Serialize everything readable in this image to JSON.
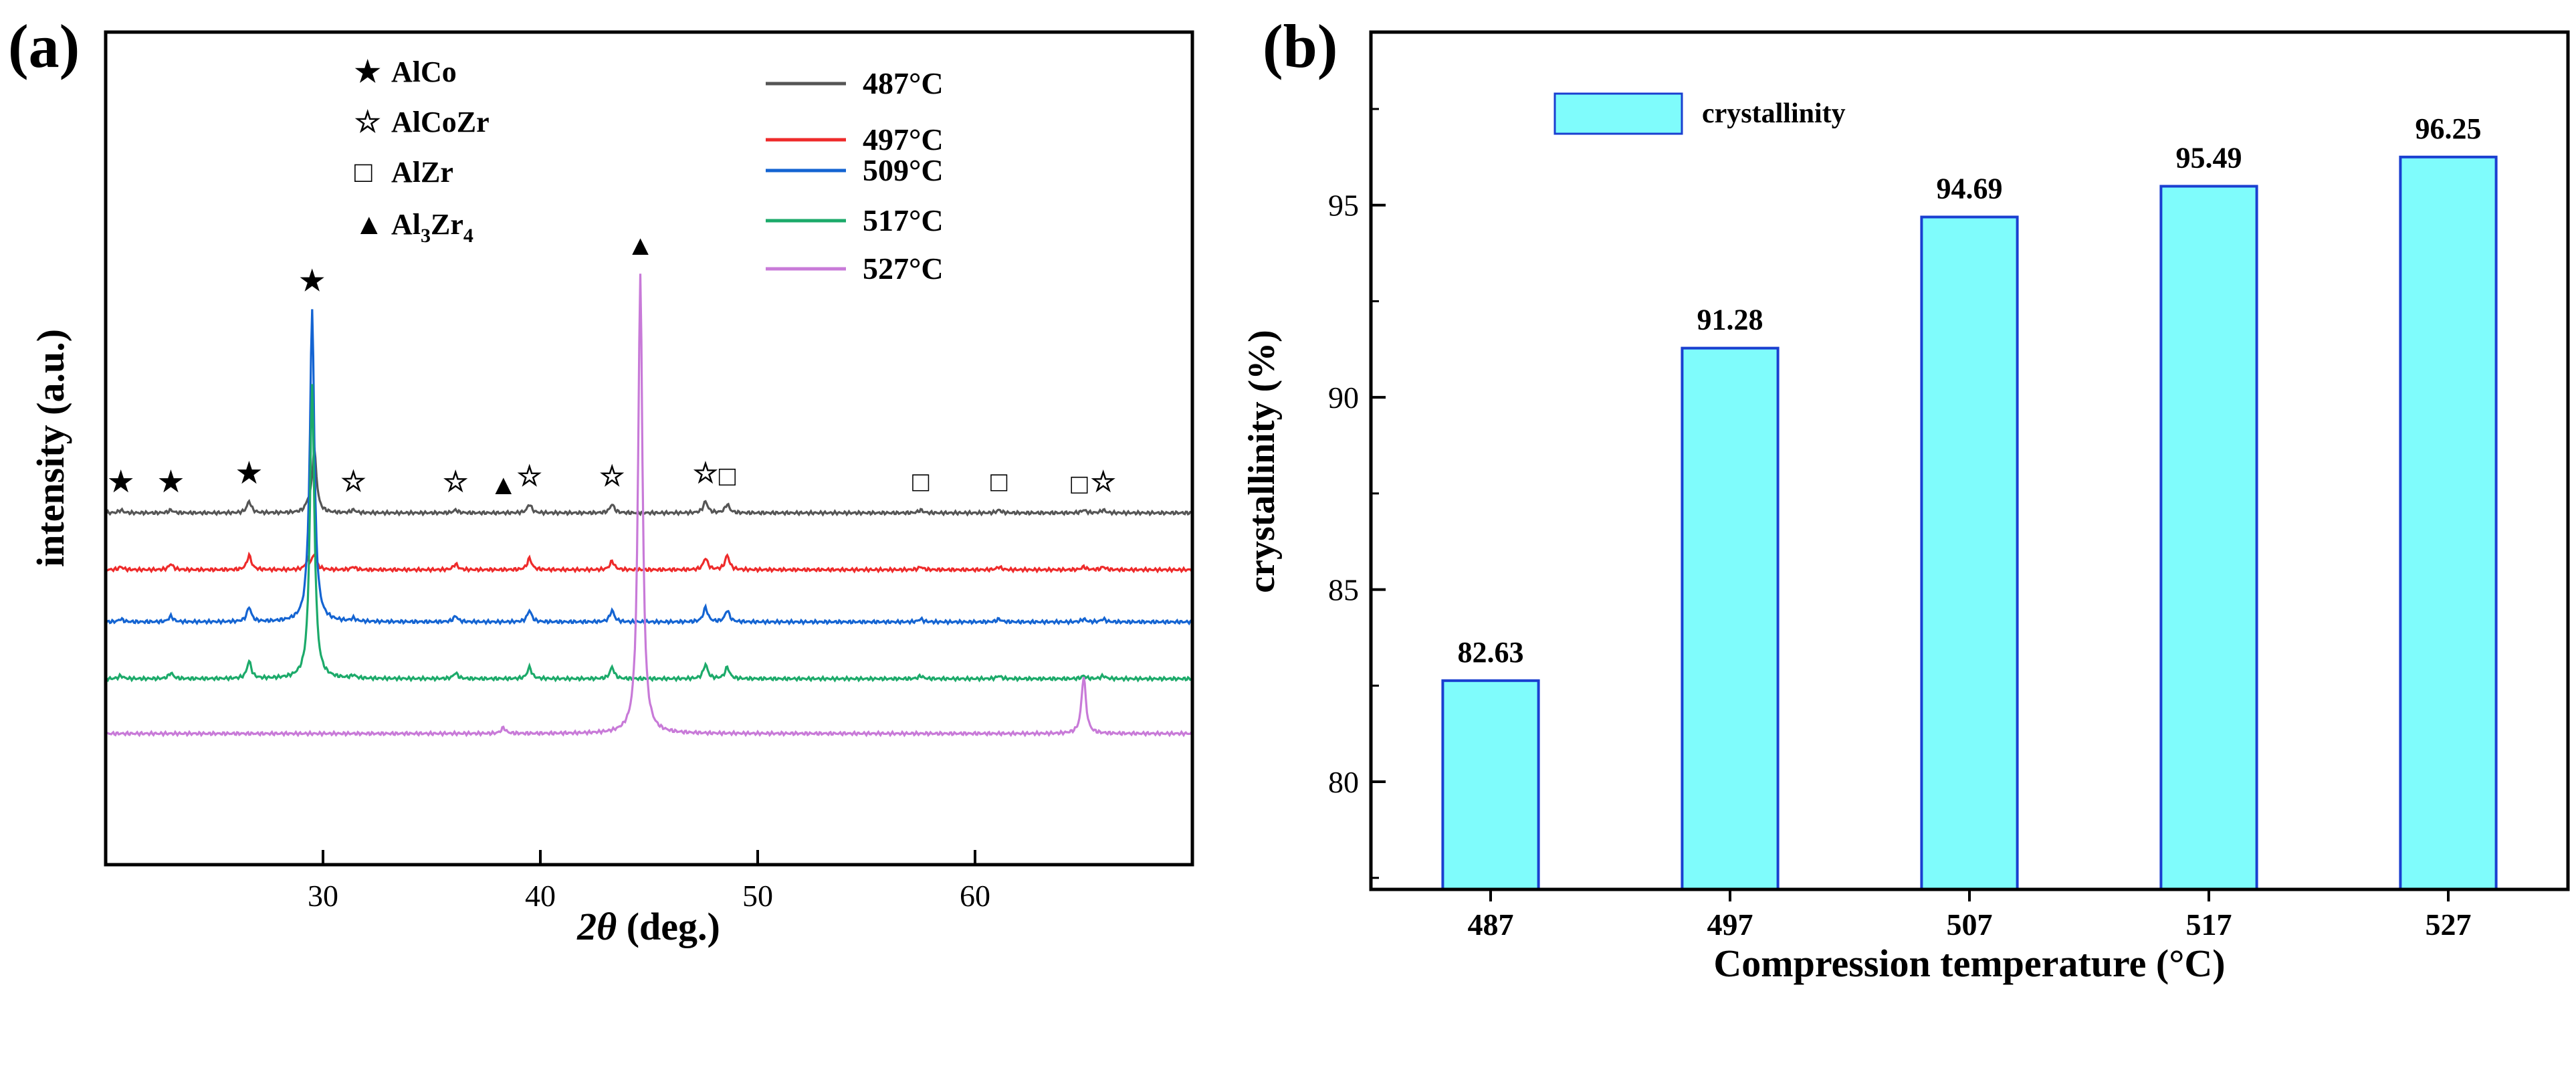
{
  "chart_data": [
    {
      "panel_label": "(a)",
      "type": "line",
      "xlabel_italic": "2θ",
      "xlabel_rest": " (deg.)",
      "ylabel": "intensity (a.u.)",
      "xlim": [
        20,
        70
      ],
      "xticks": [
        30,
        40,
        50,
        60
      ],
      "grid": false,
      "phase_legend": [
        {
          "symbol": "★",
          "name": "AlCo"
        },
        {
          "symbol": "☆",
          "name": "AlCoZr"
        },
        {
          "symbol": "□",
          "name": "AlZr"
        },
        {
          "symbol": "▲",
          "name_parts": [
            "Al",
            "3",
            "Zr",
            "4"
          ]
        }
      ],
      "series": [
        {
          "name": "487°C",
          "color": "#555555",
          "offset": 4,
          "peaks": [
            [
              20.7,
              1
            ],
            [
              23.0,
              1
            ],
            [
              26.6,
              4
            ],
            [
              29.3,
              2
            ],
            [
              29.6,
              22
            ],
            [
              31.4,
              1
            ],
            [
              36.1,
              1
            ],
            [
              39.5,
              3
            ],
            [
              43.3,
              3
            ],
            [
              47.6,
              4
            ],
            [
              48.6,
              3
            ],
            [
              57.5,
              1
            ],
            [
              61.1,
              1
            ],
            [
              65.0,
              1
            ],
            [
              65.9,
              1
            ]
          ]
        },
        {
          "name": "497°C",
          "color": "#ee2a2a",
          "offset": 3,
          "peaks": [
            [
              20.7,
              1
            ],
            [
              23.0,
              2
            ],
            [
              26.6,
              5
            ],
            [
              29.3,
              3
            ],
            [
              29.6,
              5
            ],
            [
              31.4,
              1
            ],
            [
              36.1,
              2
            ],
            [
              39.5,
              4
            ],
            [
              43.3,
              3
            ],
            [
              47.6,
              4
            ],
            [
              48.6,
              5
            ],
            [
              57.5,
              1
            ],
            [
              61.1,
              1
            ],
            [
              65.0,
              1
            ],
            [
              65.9,
              1
            ]
          ]
        },
        {
          "name": "509°C",
          "color": "#1464d2",
          "offset": 2,
          "peaks": [
            [
              20.7,
              1
            ],
            [
              23.0,
              2
            ],
            [
              26.6,
              5
            ],
            [
              29.3,
              3
            ],
            [
              29.5,
              108
            ],
            [
              31.4,
              1
            ],
            [
              36.1,
              2
            ],
            [
              39.5,
              4
            ],
            [
              43.3,
              4
            ],
            [
              47.6,
              5
            ],
            [
              48.6,
              4
            ],
            [
              57.5,
              1
            ],
            [
              61.1,
              1
            ],
            [
              65.0,
              1
            ],
            [
              65.9,
              1
            ]
          ]
        },
        {
          "name": "517°C",
          "color": "#1caa6a",
          "offset": 1,
          "peaks": [
            [
              20.7,
              1
            ],
            [
              23.0,
              2
            ],
            [
              26.6,
              6
            ],
            [
              29.5,
              102
            ],
            [
              31.4,
              1
            ],
            [
              36.1,
              2
            ],
            [
              39.5,
              4
            ],
            [
              43.3,
              4
            ],
            [
              47.6,
              5
            ],
            [
              48.6,
              4
            ],
            [
              57.5,
              1
            ],
            [
              61.1,
              1
            ],
            [
              65.0,
              1
            ],
            [
              65.9,
              1
            ]
          ]
        },
        {
          "name": "527°C",
          "color": "#c87ad8",
          "offset": 0,
          "peaks": [
            [
              38.3,
              2
            ],
            [
              44.6,
              160
            ],
            [
              65.0,
              20
            ]
          ]
        }
      ],
      "annotations": [
        {
          "symbol": "★",
          "x": 20.7,
          "series": "487°C"
        },
        {
          "symbol": "★",
          "x": 23.0,
          "series": "487°C"
        },
        {
          "symbol": "★",
          "x": 26.6,
          "series": "487°C"
        },
        {
          "symbol": "★",
          "x": 29.5,
          "series": "509°C"
        },
        {
          "symbol": "☆",
          "x": 31.4,
          "series": "487°C"
        },
        {
          "symbol": "☆",
          "x": 36.1,
          "series": "487°C"
        },
        {
          "symbol": "▲",
          "x": 38.3,
          "series": "487°C"
        },
        {
          "symbol": "☆",
          "x": 39.5,
          "series": "487°C"
        },
        {
          "symbol": "☆",
          "x": 43.3,
          "series": "487°C"
        },
        {
          "symbol": "▲",
          "x": 44.6,
          "series": "527°C"
        },
        {
          "symbol": "☆",
          "x": 47.6,
          "series": "487°C"
        },
        {
          "symbol": "□",
          "x": 48.6,
          "series": "487°C"
        },
        {
          "symbol": "□",
          "x": 57.5,
          "series": "487°C"
        },
        {
          "symbol": "□",
          "x": 61.1,
          "series": "487°C"
        },
        {
          "symbol": "□",
          "x": 64.8,
          "series": "487°C"
        },
        {
          "symbol": "☆",
          "x": 65.9,
          "series": "487°C"
        }
      ]
    },
    {
      "panel_label": "(b)",
      "type": "bar",
      "categories": [
        "487",
        "497",
        "507",
        "517",
        "527"
      ],
      "values": [
        82.63,
        91.28,
        94.69,
        95.49,
        96.25
      ],
      "value_labels": [
        "82.63",
        "91.28",
        "94.69",
        "95.49",
        "96.25"
      ],
      "series_name": "crystallinity",
      "bar_color": "#7ffcfc",
      "bar_edge": "#1a3fd0",
      "xlabel": "Compression temperature (°C)",
      "ylabel": "crystallinity (%)",
      "ylim": [
        77.2,
        99.5
      ],
      "yticks": [
        80,
        85,
        90,
        95
      ],
      "grid": false,
      "legend_position": "top-left"
    }
  ]
}
